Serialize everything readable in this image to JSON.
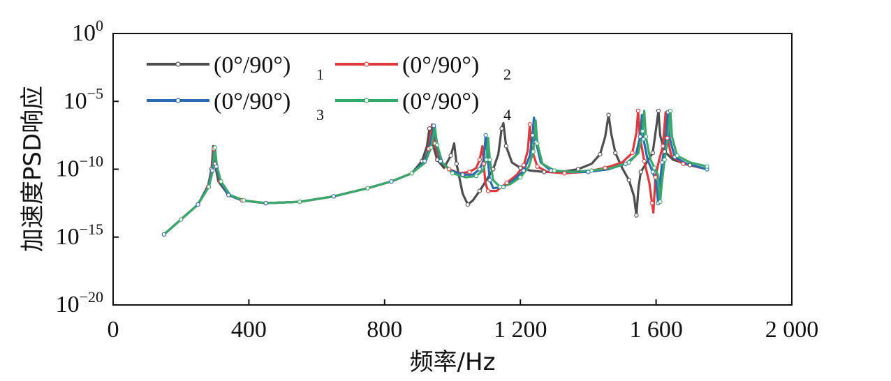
{
  "chart_data": {
    "type": "line",
    "title": "",
    "xlabel": "频率/Hz",
    "ylabel": "加速度PSD响应",
    "xlim": [
      0,
      2000
    ],
    "ylim_exponent": [
      -20,
      0
    ],
    "y_scale": "log",
    "x_ticks": [
      0,
      400,
      800,
      1200,
      1600,
      2000
    ],
    "x_tick_labels": [
      "0",
      "400",
      "800",
      "1 200",
      "1 600",
      "2 000"
    ],
    "y_ticks": [
      {
        "base": "10",
        "exp": "0",
        "value_exp": 0
      },
      {
        "base": "10",
        "exp": "−5",
        "value_exp": -5
      },
      {
        "base": "10",
        "exp": "−10",
        "value_exp": -10
      },
      {
        "base": "10",
        "exp": "−15",
        "value_exp": -15
      },
      {
        "base": "10",
        "exp": "−20",
        "value_exp": -20
      }
    ],
    "grid": false,
    "legend_position": "top-left",
    "series": [
      {
        "name": "(0°/90°)",
        "subscript": "1",
        "color": "#4d4d4d",
        "points": [
          [
            150,
            -14.8
          ],
          [
            200,
            -13.7
          ],
          [
            250,
            -12.6
          ],
          [
            280,
            -11.2
          ],
          [
            290,
            -10.0
          ],
          [
            295,
            -8.3
          ],
          [
            300,
            -9.6
          ],
          [
            310,
            -10.9
          ],
          [
            340,
            -11.9
          ],
          [
            380,
            -12.3
          ],
          [
            450,
            -12.5
          ],
          [
            550,
            -12.4
          ],
          [
            650,
            -12.0
          ],
          [
            750,
            -11.4
          ],
          [
            820,
            -10.9
          ],
          [
            880,
            -10.3
          ],
          [
            910,
            -9.4
          ],
          [
            925,
            -8.3
          ],
          [
            932,
            -7.0
          ],
          [
            940,
            -8.0
          ],
          [
            955,
            -9.3
          ],
          [
            975,
            -9.9
          ],
          [
            995,
            -9.0
          ],
          [
            1005,
            -8.1
          ],
          [
            1012,
            -9.6
          ],
          [
            1030,
            -11.8
          ],
          [
            1045,
            -12.6
          ],
          [
            1060,
            -12.3
          ],
          [
            1080,
            -11.6
          ],
          [
            1100,
            -10.8
          ],
          [
            1120,
            -10.0
          ],
          [
            1135,
            -8.9
          ],
          [
            1145,
            -7.0
          ],
          [
            1150,
            -6.6
          ],
          [
            1158,
            -8.3
          ],
          [
            1175,
            -9.5
          ],
          [
            1200,
            -9.9
          ],
          [
            1230,
            -10.1
          ],
          [
            1270,
            -10.2
          ],
          [
            1320,
            -10.2
          ],
          [
            1370,
            -10.0
          ],
          [
            1410,
            -9.6
          ],
          [
            1435,
            -8.9
          ],
          [
            1450,
            -7.6
          ],
          [
            1460,
            -6.0
          ],
          [
            1468,
            -7.4
          ],
          [
            1480,
            -8.8
          ],
          [
            1500,
            -9.9
          ],
          [
            1520,
            -10.8
          ],
          [
            1535,
            -12.0
          ],
          [
            1542,
            -13.4
          ],
          [
            1548,
            -11.4
          ],
          [
            1555,
            -10.2
          ],
          [
            1570,
            -9.6
          ],
          [
            1590,
            -8.8
          ],
          [
            1600,
            -7.0
          ],
          [
            1607,
            -5.7
          ],
          [
            1612,
            -7.5
          ],
          [
            1625,
            -8.7
          ],
          [
            1650,
            -9.3
          ],
          [
            1700,
            -9.7
          ],
          [
            1750,
            -10.0
          ]
        ]
      },
      {
        "name": "(0°/90°)",
        "subscript": "2",
        "color": "#e0393b",
        "points": [
          [
            150,
            -14.8
          ],
          [
            200,
            -13.7
          ],
          [
            250,
            -12.6
          ],
          [
            280,
            -11.3
          ],
          [
            290,
            -10.2
          ],
          [
            297,
            -8.5
          ],
          [
            302,
            -9.7
          ],
          [
            315,
            -10.9
          ],
          [
            340,
            -11.9
          ],
          [
            380,
            -12.3
          ],
          [
            450,
            -12.5
          ],
          [
            550,
            -12.4
          ],
          [
            650,
            -12.0
          ],
          [
            750,
            -11.4
          ],
          [
            820,
            -10.9
          ],
          [
            880,
            -10.3
          ],
          [
            915,
            -9.5
          ],
          [
            930,
            -8.5
          ],
          [
            940,
            -6.7
          ],
          [
            948,
            -8.1
          ],
          [
            960,
            -9.3
          ],
          [
            990,
            -10.0
          ],
          [
            1020,
            -10.3
          ],
          [
            1050,
            -10.2
          ],
          [
            1070,
            -9.9
          ],
          [
            1080,
            -9.3
          ],
          [
            1088,
            -8.3
          ],
          [
            1092,
            -9.6
          ],
          [
            1097,
            -11.0
          ],
          [
            1105,
            -11.6
          ],
          [
            1130,
            -11.6
          ],
          [
            1160,
            -11.0
          ],
          [
            1190,
            -10.4
          ],
          [
            1210,
            -9.7
          ],
          [
            1222,
            -8.6
          ],
          [
            1228,
            -6.7
          ],
          [
            1233,
            -8.5
          ],
          [
            1250,
            -9.8
          ],
          [
            1280,
            -10.2
          ],
          [
            1330,
            -10.3
          ],
          [
            1390,
            -10.2
          ],
          [
            1450,
            -9.9
          ],
          [
            1500,
            -9.5
          ],
          [
            1530,
            -8.8
          ],
          [
            1542,
            -7.3
          ],
          [
            1547,
            -5.7
          ],
          [
            1552,
            -7.6
          ],
          [
            1565,
            -9.4
          ],
          [
            1580,
            -11.0
          ],
          [
            1588,
            -12.5
          ],
          [
            1592,
            -13.2
          ],
          [
            1598,
            -10.6
          ],
          [
            1608,
            -9.4
          ],
          [
            1620,
            -8.3
          ],
          [
            1628,
            -5.8
          ],
          [
            1633,
            -7.7
          ],
          [
            1645,
            -9.0
          ],
          [
            1680,
            -9.6
          ],
          [
            1750,
            -10.0
          ]
        ]
      },
      {
        "name": "(0°/90°)",
        "subscript": "3",
        "color": "#2b6cb0",
        "points": [
          [
            150,
            -14.8
          ],
          [
            200,
            -13.7
          ],
          [
            250,
            -12.6
          ],
          [
            280,
            -11.3
          ],
          [
            292,
            -10.1
          ],
          [
            298,
            -8.6
          ],
          [
            304,
            -9.8
          ],
          [
            315,
            -10.9
          ],
          [
            340,
            -11.9
          ],
          [
            380,
            -12.3
          ],
          [
            450,
            -12.5
          ],
          [
            550,
            -12.4
          ],
          [
            650,
            -12.0
          ],
          [
            750,
            -11.4
          ],
          [
            820,
            -10.9
          ],
          [
            880,
            -10.3
          ],
          [
            918,
            -9.4
          ],
          [
            933,
            -8.4
          ],
          [
            945,
            -6.8
          ],
          [
            952,
            -8.1
          ],
          [
            965,
            -9.4
          ],
          [
            995,
            -10.1
          ],
          [
            1030,
            -10.4
          ],
          [
            1060,
            -10.4
          ],
          [
            1080,
            -10.0
          ],
          [
            1092,
            -9.3
          ],
          [
            1098,
            -7.5
          ],
          [
            1103,
            -9.0
          ],
          [
            1110,
            -10.8
          ],
          [
            1120,
            -11.4
          ],
          [
            1150,
            -11.3
          ],
          [
            1180,
            -10.8
          ],
          [
            1210,
            -10.1
          ],
          [
            1228,
            -9.0
          ],
          [
            1236,
            -7.5
          ],
          [
            1240,
            -6.2
          ],
          [
            1246,
            -8.0
          ],
          [
            1260,
            -9.5
          ],
          [
            1290,
            -10.1
          ],
          [
            1340,
            -10.2
          ],
          [
            1400,
            -10.2
          ],
          [
            1460,
            -10.0
          ],
          [
            1510,
            -9.6
          ],
          [
            1540,
            -9.0
          ],
          [
            1553,
            -7.6
          ],
          [
            1558,
            -6.0
          ],
          [
            1563,
            -7.8
          ],
          [
            1575,
            -9.3
          ],
          [
            1590,
            -10.2
          ],
          [
            1600,
            -10.9
          ],
          [
            1606,
            -12.5
          ],
          [
            1610,
            -11.2
          ],
          [
            1618,
            -9.5
          ],
          [
            1628,
            -7.8
          ],
          [
            1635,
            -5.8
          ],
          [
            1640,
            -7.7
          ],
          [
            1655,
            -9.1
          ],
          [
            1690,
            -9.6
          ],
          [
            1750,
            -10.0
          ]
        ]
      },
      {
        "name": "(0°/90°)",
        "subscript": "4",
        "color": "#3aa86b",
        "points": [
          [
            150,
            -14.8
          ],
          [
            200,
            -13.7
          ],
          [
            250,
            -12.6
          ],
          [
            282,
            -11.3
          ],
          [
            293,
            -10.2
          ],
          [
            300,
            -8.4
          ],
          [
            306,
            -9.8
          ],
          [
            318,
            -10.9
          ],
          [
            345,
            -11.9
          ],
          [
            385,
            -12.3
          ],
          [
            450,
            -12.5
          ],
          [
            550,
            -12.4
          ],
          [
            650,
            -12.0
          ],
          [
            750,
            -11.4
          ],
          [
            820,
            -10.9
          ],
          [
            880,
            -10.3
          ],
          [
            920,
            -9.5
          ],
          [
            937,
            -8.4
          ],
          [
            948,
            -6.9
          ],
          [
            955,
            -8.2
          ],
          [
            970,
            -9.5
          ],
          [
            1000,
            -10.3
          ],
          [
            1040,
            -10.6
          ],
          [
            1070,
            -10.5
          ],
          [
            1090,
            -10.1
          ],
          [
            1100,
            -9.3
          ],
          [
            1105,
            -7.7
          ],
          [
            1110,
            -9.3
          ],
          [
            1120,
            -10.8
          ],
          [
            1140,
            -11.3
          ],
          [
            1170,
            -11.1
          ],
          [
            1200,
            -10.6
          ],
          [
            1225,
            -9.8
          ],
          [
            1238,
            -8.7
          ],
          [
            1245,
            -6.4
          ],
          [
            1250,
            -8.1
          ],
          [
            1265,
            -9.6
          ],
          [
            1300,
            -10.1
          ],
          [
            1350,
            -10.2
          ],
          [
            1410,
            -10.1
          ],
          [
            1470,
            -9.9
          ],
          [
            1520,
            -9.5
          ],
          [
            1548,
            -8.8
          ],
          [
            1560,
            -7.2
          ],
          [
            1565,
            -5.7
          ],
          [
            1570,
            -7.6
          ],
          [
            1582,
            -9.2
          ],
          [
            1595,
            -9.9
          ],
          [
            1605,
            -10.4
          ],
          [
            1612,
            -12.4
          ],
          [
            1617,
            -11.0
          ],
          [
            1625,
            -9.3
          ],
          [
            1635,
            -7.6
          ],
          [
            1642,
            -5.7
          ],
          [
            1647,
            -7.6
          ],
          [
            1662,
            -9.0
          ],
          [
            1700,
            -9.5
          ],
          [
            1750,
            -9.8
          ]
        ]
      }
    ]
  }
}
